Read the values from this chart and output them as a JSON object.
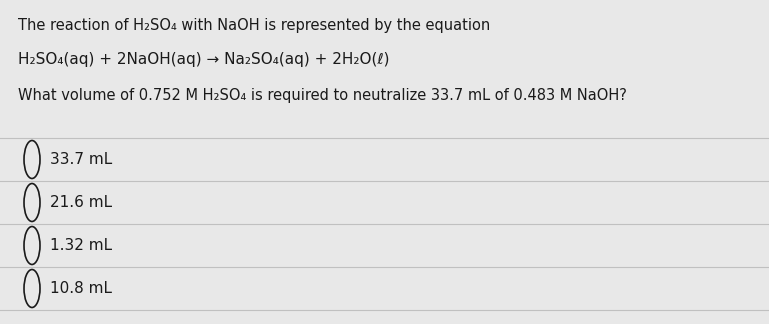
{
  "bg_color": "#e8e8e8",
  "text_color": "#1a1a1a",
  "line1": "The reaction of H₂SO₄ with NaOH is represented by the equation",
  "line2": "H₂SO₄(aq) + 2NaOH(aq) → Na₂SO₄(aq) + 2H₂O(ℓ)",
  "line3": "What volume of 0.752 M H₂SO₄ is required to neutralize 33.7 mL of 0.483 M NaOH?",
  "choices": [
    "33.7 mL",
    "21.6 mL",
    "1.32 mL",
    "10.8 mL"
  ],
  "divider_color": "#c0c0c0",
  "font_size_line1": 10.5,
  "font_size_eq": 11.0,
  "font_size_q": 10.5,
  "font_size_choices": 11.0,
  "figsize": [
    7.69,
    3.24
  ],
  "dpi": 100
}
